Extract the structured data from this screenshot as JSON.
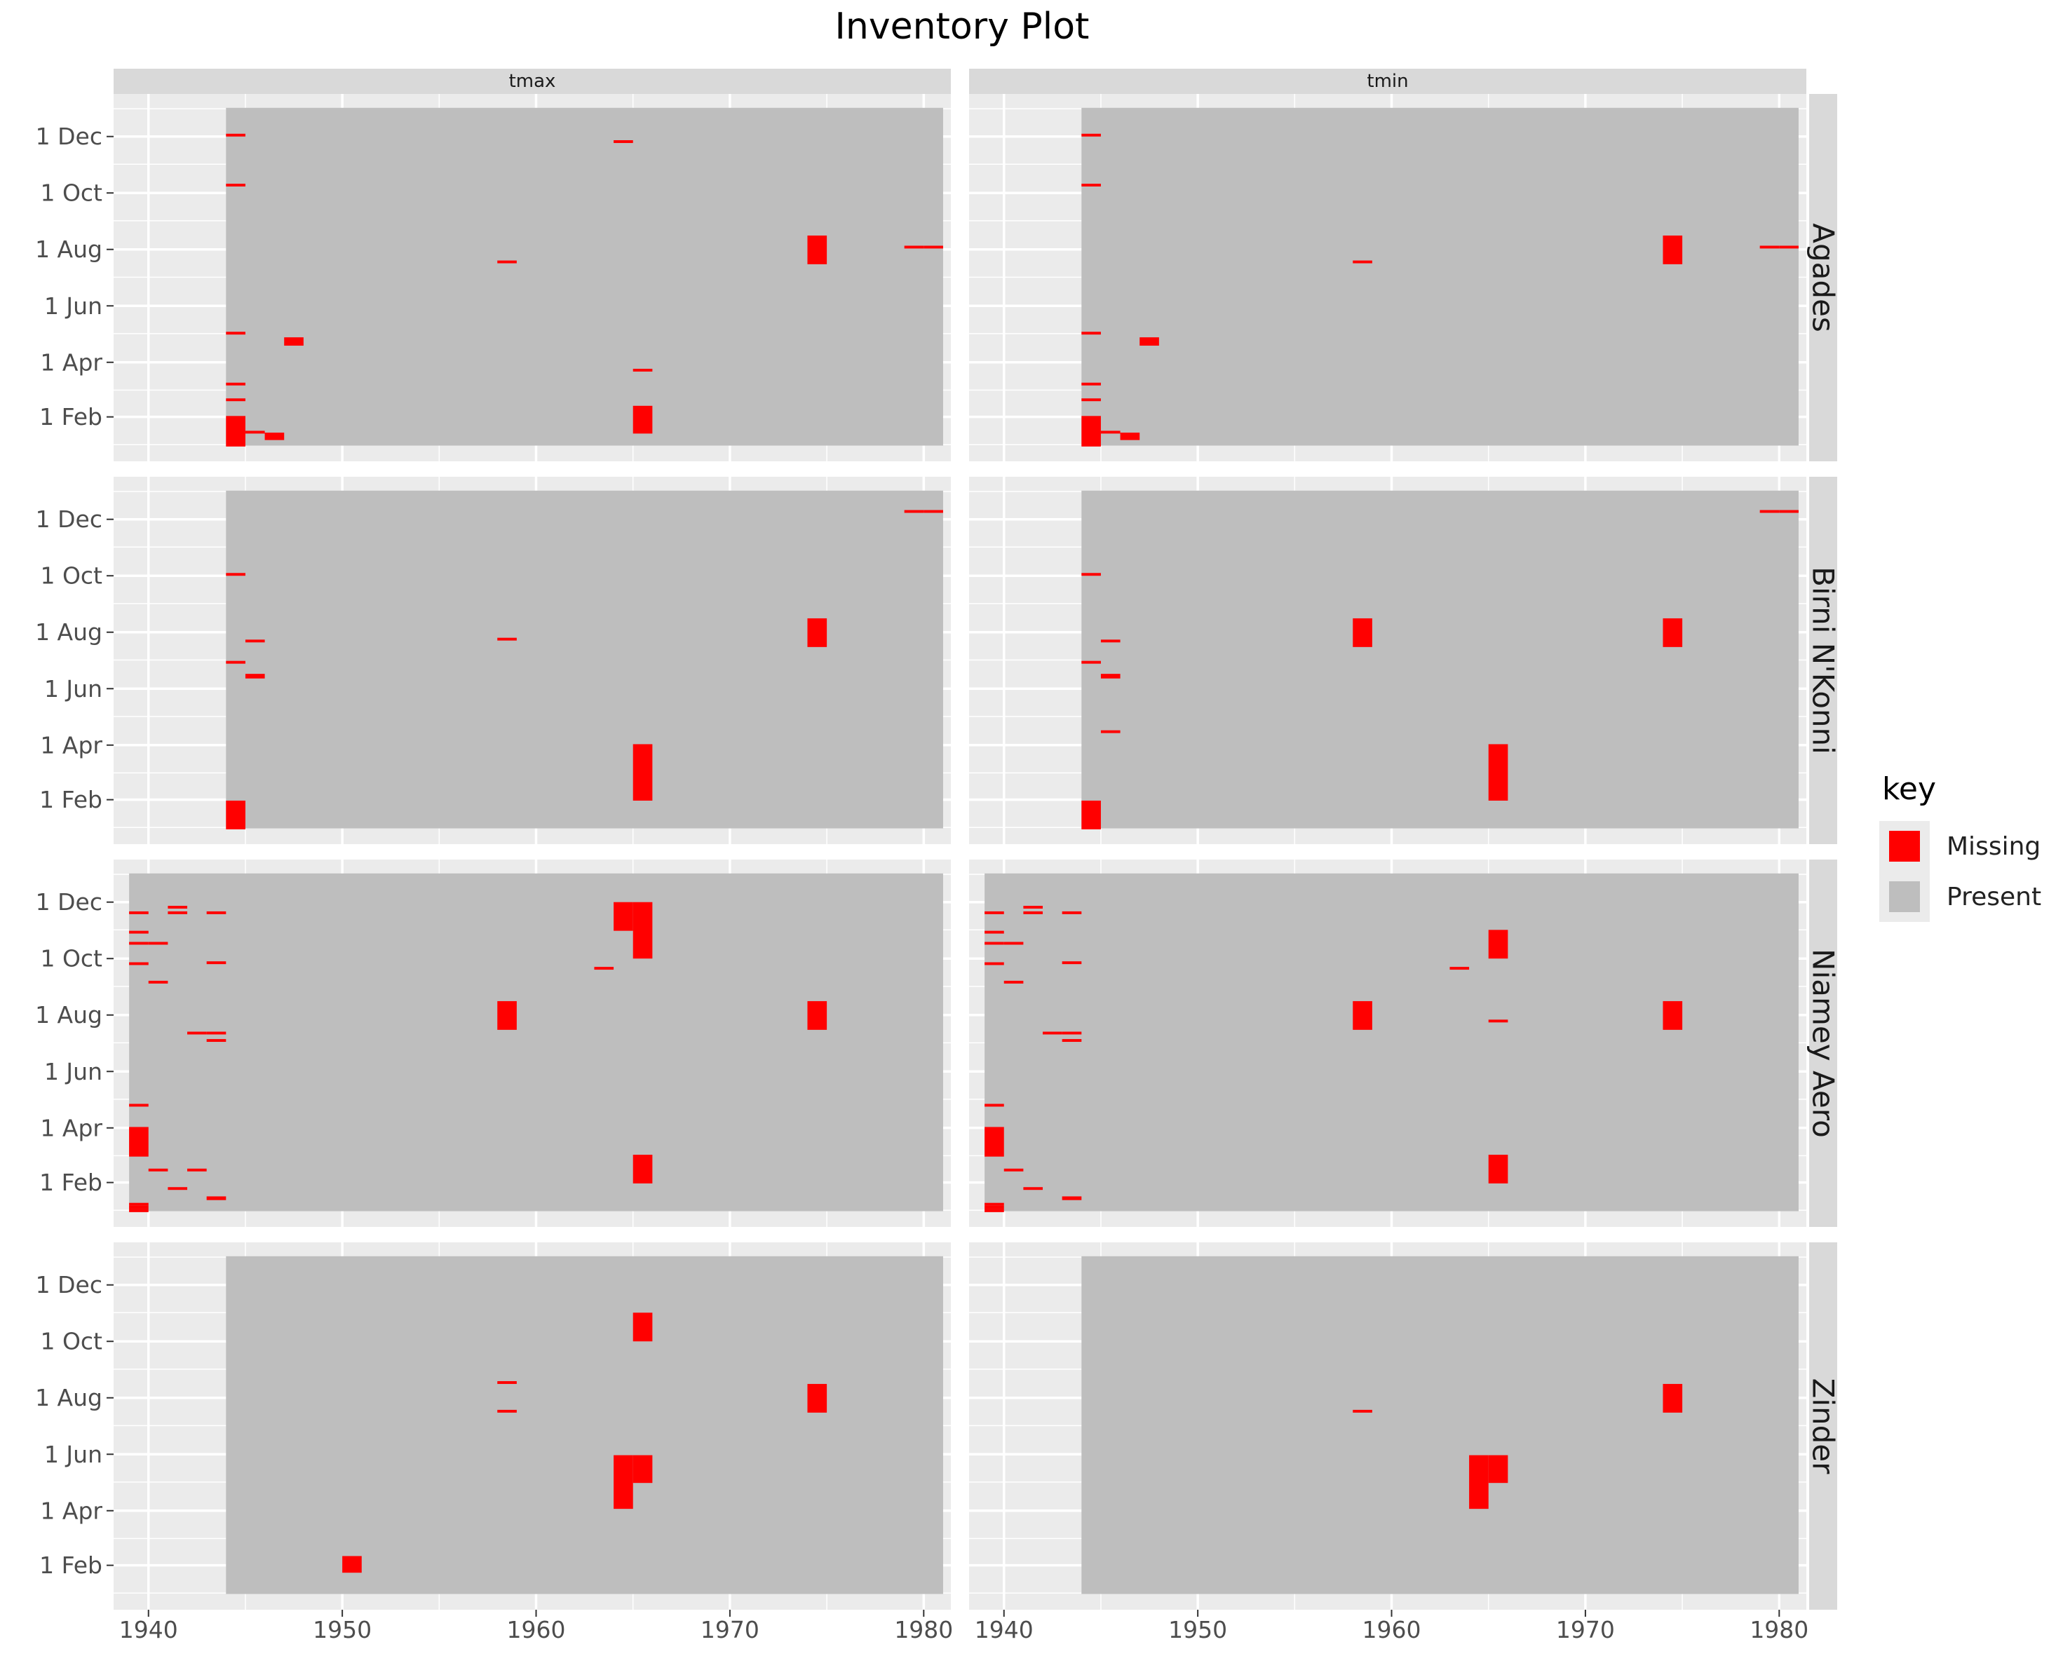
{
  "title": "Inventory Plot",
  "colors": {
    "panel_background": "#ebebeb",
    "present": "#bebebe",
    "missing": "#ff0000",
    "strip": "#d9d9d9",
    "grid": "#ffffff"
  },
  "legend": {
    "title": "key",
    "items": [
      {
        "label": "Missing",
        "color": "#ff0000"
      },
      {
        "label": "Present",
        "color": "#bebebe"
      }
    ]
  },
  "chart_data": {
    "type": "heatmap",
    "title": "Inventory Plot",
    "facet_columns": [
      "tmax",
      "tmin"
    ],
    "facet_rows": [
      "Agades",
      "Birni N'Konni",
      "Niamey Aero",
      "Zinder"
    ],
    "x_ticks": [
      1940,
      1950,
      1960,
      1970,
      1980
    ],
    "xlim": [
      1938.2,
      1981.4
    ],
    "y_ticks": [
      {
        "label": "1 Feb",
        "doy": 32
      },
      {
        "label": "1 Apr",
        "doy": 91
      },
      {
        "label": "1 Jun",
        "doy": 152
      },
      {
        "label": "1 Aug",
        "doy": 213
      },
      {
        "label": "1 Oct",
        "doy": 274
      },
      {
        "label": "1 Dec",
        "doy": 335
      }
    ],
    "ylim_doy": [
      -16,
      381
    ],
    "record_extent_doy": [
      1,
      366
    ],
    "record_periods": {
      "Agades": [
        1944,
        1981
      ],
      "Birni N'Konni": [
        1944,
        1981
      ],
      "Niamey Aero": [
        1939,
        1981
      ],
      "Zinder": [
        1944,
        1981
      ]
    },
    "missing_blocks_doy": {
      "Agades": {
        "tmax": [
          [
            1944,
            1,
            31
          ],
          [
            1944,
            32,
            33
          ],
          [
            1944,
            50,
            52
          ],
          [
            1944,
            67,
            69
          ],
          [
            1944,
            122,
            124
          ],
          [
            1944,
            282,
            284
          ],
          [
            1944,
            336,
            338
          ],
          [
            1945,
            15,
            17
          ],
          [
            1946,
            8,
            15
          ],
          [
            1947,
            110,
            118
          ],
          [
            1958,
            199,
            201
          ],
          [
            1964,
            329,
            331
          ],
          [
            1965,
            15,
            44
          ],
          [
            1965,
            82,
            84
          ],
          [
            1974,
            198,
            228
          ],
          [
            1979,
            215,
            217
          ],
          [
            1980,
            215,
            217
          ]
        ],
        "tmin": [
          [
            1944,
            1,
            31
          ],
          [
            1944,
            32,
            33
          ],
          [
            1944,
            50,
            52
          ],
          [
            1944,
            67,
            69
          ],
          [
            1944,
            122,
            124
          ],
          [
            1944,
            282,
            284
          ],
          [
            1944,
            336,
            338
          ],
          [
            1945,
            15,
            17
          ],
          [
            1946,
            8,
            15
          ],
          [
            1947,
            110,
            118
          ],
          [
            1958,
            199,
            201
          ],
          [
            1974,
            198,
            228
          ],
          [
            1979,
            215,
            217
          ],
          [
            1980,
            215,
            217
          ]
        ]
      },
      "Birni N'Konni": {
        "tmax": [
          [
            1944,
            1,
            31
          ],
          [
            1944,
            180,
            182
          ],
          [
            1944,
            275,
            277
          ],
          [
            1945,
            164,
            168
          ],
          [
            1945,
            203,
            205
          ],
          [
            1958,
            205,
            207
          ],
          [
            1965,
            32,
            92
          ],
          [
            1974,
            198,
            228
          ],
          [
            1979,
            343,
            345
          ],
          [
            1980,
            343,
            345
          ]
        ],
        "tmin": [
          [
            1944,
            1,
            31
          ],
          [
            1944,
            180,
            182
          ],
          [
            1944,
            275,
            277
          ],
          [
            1945,
            164,
            168
          ],
          [
            1945,
            105,
            107
          ],
          [
            1945,
            203,
            205
          ],
          [
            1958,
            198,
            228
          ],
          [
            1965,
            32,
            92
          ],
          [
            1974,
            198,
            228
          ],
          [
            1979,
            343,
            345
          ],
          [
            1980,
            343,
            345
          ]
        ]
      },
      "Niamey Aero": {
        "tmax": [
          [
            1939,
            1,
            3
          ],
          [
            1939,
            4,
            7
          ],
          [
            1939,
            8,
            10
          ],
          [
            1939,
            61,
            92
          ],
          [
            1939,
            115,
            117
          ],
          [
            1939,
            268,
            270
          ],
          [
            1939,
            290,
            292
          ],
          [
            1939,
            302,
            304
          ],
          [
            1939,
            323,
            325
          ],
          [
            1940,
            290,
            292
          ],
          [
            1940,
            45,
            47
          ],
          [
            1940,
            248,
            250
          ],
          [
            1941,
            25,
            27
          ],
          [
            1941,
            323,
            325
          ],
          [
            1941,
            329,
            331
          ],
          [
            1942,
            45,
            47
          ],
          [
            1942,
            193,
            195
          ],
          [
            1943,
            14,
            17
          ],
          [
            1943,
            193,
            195
          ],
          [
            1943,
            185,
            187
          ],
          [
            1943,
            269,
            271
          ],
          [
            1943,
            323,
            325
          ],
          [
            1958,
            198,
            228
          ],
          [
            1963,
            263,
            265
          ],
          [
            1964,
            305,
            335
          ],
          [
            1965,
            32,
            62
          ],
          [
            1965,
            275,
            335
          ],
          [
            1974,
            198,
            228
          ]
        ],
        "tmin": [
          [
            1939,
            1,
            3
          ],
          [
            1939,
            4,
            7
          ],
          [
            1939,
            8,
            10
          ],
          [
            1939,
            61,
            92
          ],
          [
            1939,
            115,
            117
          ],
          [
            1939,
            268,
            270
          ],
          [
            1939,
            290,
            292
          ],
          [
            1939,
            302,
            304
          ],
          [
            1939,
            323,
            325
          ],
          [
            1940,
            290,
            292
          ],
          [
            1940,
            248,
            250
          ],
          [
            1940,
            45,
            47
          ],
          [
            1941,
            25,
            27
          ],
          [
            1941,
            323,
            325
          ],
          [
            1941,
            329,
            331
          ],
          [
            1942,
            193,
            195
          ],
          [
            1943,
            14,
            17
          ],
          [
            1943,
            193,
            195
          ],
          [
            1943,
            185,
            187
          ],
          [
            1943,
            269,
            271
          ],
          [
            1943,
            323,
            325
          ],
          [
            1958,
            198,
            228
          ],
          [
            1963,
            263,
            265
          ],
          [
            1965,
            275,
            305
          ],
          [
            1965,
            206,
            208
          ],
          [
            1965,
            32,
            62
          ],
          [
            1974,
            198,
            228
          ]
        ]
      },
      "Zinder": {
        "tmax": [
          [
            1950,
            25,
            42
          ],
          [
            1958,
            198,
            200
          ],
          [
            1958,
            229,
            231
          ],
          [
            1964,
            94,
            151
          ],
          [
            1965,
            122,
            151
          ],
          [
            1965,
            275,
            305
          ],
          [
            1974,
            198,
            228
          ]
        ],
        "tmin": [
          [
            1958,
            198,
            200
          ],
          [
            1964,
            94,
            151
          ],
          [
            1965,
            122,
            151
          ],
          [
            1974,
            198,
            228
          ]
        ]
      }
    }
  }
}
